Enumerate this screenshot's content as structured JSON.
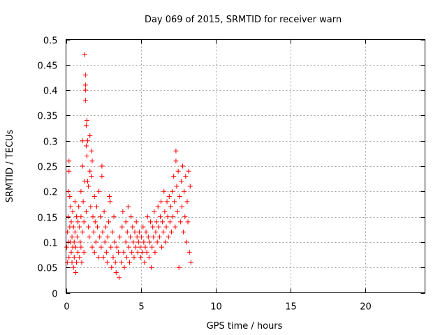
{
  "chart_data": {
    "type": "scatter",
    "title": "Day 069 of 2015, SRMTID for receiver warn",
    "xlabel": "GPS time / hours",
    "ylabel": "SRMTID / TECUs",
    "xlim": [
      0,
      24
    ],
    "ylim": [
      0,
      0.5
    ],
    "xticks": [
      0,
      5,
      10,
      15,
      20
    ],
    "xtick_labels": [
      "0",
      "5",
      "10",
      "15",
      "20"
    ],
    "yticks": [
      0,
      0.05,
      0.1,
      0.15,
      0.2,
      0.25,
      0.3,
      0.35,
      0.4,
      0.45,
      0.5
    ],
    "ytick_labels": [
      "0",
      "0.05",
      "0.1",
      "0.15",
      "0.2",
      "0.25",
      "0.3",
      "0.35",
      "0.4",
      "0.45",
      "0.5"
    ],
    "grid": true,
    "marker": "+",
    "series": [
      {
        "name": "warn",
        "color": "#ff0000",
        "points": [
          [
            0.05,
            0.09
          ],
          [
            0.1,
            0.12
          ],
          [
            0.1,
            0.06
          ],
          [
            0.15,
            0.2
          ],
          [
            0.15,
            0.15
          ],
          [
            0.15,
            0.1
          ],
          [
            0.2,
            0.26
          ],
          [
            0.2,
            0.24
          ],
          [
            0.2,
            0.07
          ],
          [
            0.25,
            0.19
          ],
          [
            0.25,
            0.13
          ],
          [
            0.3,
            0.1
          ],
          [
            0.3,
            0.17
          ],
          [
            0.35,
            0.08
          ],
          [
            0.35,
            0.14
          ],
          [
            0.4,
            0.06
          ],
          [
            0.4,
            0.11
          ],
          [
            0.45,
            0.16
          ],
          [
            0.45,
            0.09
          ],
          [
            0.5,
            0.05
          ],
          [
            0.5,
            0.13
          ],
          [
            0.55,
            0.1
          ],
          [
            0.55,
            0.07
          ],
          [
            0.6,
            0.18
          ],
          [
            0.6,
            0.12
          ],
          [
            0.65,
            0.04
          ],
          [
            0.65,
            0.09
          ],
          [
            0.7,
            0.15
          ],
          [
            0.7,
            0.06
          ],
          [
            0.75,
            0.11
          ],
          [
            0.8,
            0.14
          ],
          [
            0.8,
            0.08
          ],
          [
            0.85,
            0.17
          ],
          [
            0.9,
            0.13
          ],
          [
            0.9,
            0.07
          ],
          [
            0.95,
            0.1
          ],
          [
            1.0,
            0.2
          ],
          [
            1.0,
            0.15
          ],
          [
            1.0,
            0.09
          ],
          [
            1.05,
            0.06
          ],
          [
            1.1,
            0.25
          ],
          [
            1.1,
            0.3
          ],
          [
            1.1,
            0.12
          ],
          [
            1.15,
            0.18
          ],
          [
            1.2,
            0.08
          ],
          [
            1.2,
            0.14
          ],
          [
            1.25,
            0.22
          ],
          [
            1.25,
            0.47
          ],
          [
            1.3,
            0.43
          ],
          [
            1.3,
            0.41
          ],
          [
            1.3,
            0.38
          ],
          [
            1.3,
            0.4
          ],
          [
            1.35,
            0.33
          ],
          [
            1.35,
            0.29
          ],
          [
            1.35,
            0.16
          ],
          [
            1.4,
            0.34
          ],
          [
            1.4,
            0.27
          ],
          [
            1.45,
            0.3
          ],
          [
            1.45,
            0.22
          ],
          [
            1.5,
            0.21
          ],
          [
            1.5,
            0.13
          ],
          [
            1.55,
            0.11
          ],
          [
            1.6,
            0.31
          ],
          [
            1.6,
            0.24
          ],
          [
            1.65,
            0.17
          ],
          [
            1.7,
            0.28
          ],
          [
            1.7,
            0.23
          ],
          [
            1.75,
            0.26
          ],
          [
            1.75,
            0.09
          ],
          [
            1.8,
            0.15
          ],
          [
            1.85,
            0.12
          ],
          [
            1.9,
            0.19
          ],
          [
            1.9,
            0.08
          ],
          [
            1.95,
            0.14
          ],
          [
            2.0,
            0.1
          ],
          [
            2.05,
            0.17
          ],
          [
            2.1,
            0.13
          ],
          [
            2.15,
            0.07
          ],
          [
            2.2,
            0.2
          ],
          [
            2.25,
            0.11
          ],
          [
            2.3,
            0.15
          ],
          [
            2.35,
            0.09
          ],
          [
            2.4,
            0.25
          ],
          [
            2.4,
            0.23
          ],
          [
            2.45,
            0.12
          ],
          [
            2.5,
            0.07
          ],
          [
            2.55,
            0.16
          ],
          [
            2.6,
            0.1
          ],
          [
            2.65,
            0.13
          ],
          [
            2.7,
            0.08
          ],
          [
            2.75,
            0.06
          ],
          [
            2.8,
            0.11
          ],
          [
            2.85,
            0.14
          ],
          [
            2.9,
            0.19
          ],
          [
            2.95,
            0.18
          ],
          [
            3.0,
            0.09
          ],
          [
            3.05,
            0.05
          ],
          [
            3.1,
            0.12
          ],
          [
            3.15,
            0.07
          ],
          [
            3.2,
            0.15
          ],
          [
            3.25,
            0.1
          ],
          [
            3.3,
            0.06
          ],
          [
            3.35,
            0.04
          ],
          [
            3.4,
            0.09
          ],
          [
            3.5,
            0.08
          ],
          [
            3.55,
            0.03
          ],
          [
            3.6,
            0.11
          ],
          [
            3.7,
            0.06
          ],
          [
            3.75,
            0.13
          ],
          [
            3.8,
            0.16
          ],
          [
            3.85,
            0.08
          ],
          [
            3.9,
            0.05
          ],
          [
            4.0,
            0.1
          ],
          [
            4.0,
            0.14
          ],
          [
            4.05,
            0.07
          ],
          [
            4.1,
            0.12
          ],
          [
            4.15,
            0.17
          ],
          [
            4.2,
            0.09
          ],
          [
            4.25,
            0.06
          ],
          [
            4.3,
            0.11
          ],
          [
            4.35,
            0.15
          ],
          [
            4.4,
            0.08
          ],
          [
            4.45,
            0.13
          ],
          [
            4.5,
            0.1
          ],
          [
            4.55,
            0.07
          ],
          [
            4.6,
            0.12
          ],
          [
            4.65,
            0.09
          ],
          [
            4.7,
            0.14
          ],
          [
            4.75,
            0.11
          ],
          [
            4.8,
            0.08
          ],
          [
            4.85,
            0.1
          ],
          [
            4.9,
            0.12
          ],
          [
            4.95,
            0.09
          ],
          [
            5.0,
            0.07
          ],
          [
            5.05,
            0.11
          ],
          [
            5.1,
            0.08
          ],
          [
            5.15,
            0.13
          ],
          [
            5.2,
            0.1
          ],
          [
            5.25,
            0.06
          ],
          [
            5.3,
            0.09
          ],
          [
            5.35,
            0.12
          ],
          [
            5.4,
            0.08
          ],
          [
            5.45,
            0.15
          ],
          [
            5.5,
            0.11
          ],
          [
            5.55,
            0.07
          ],
          [
            5.6,
            0.1
          ],
          [
            5.65,
            0.14
          ],
          [
            5.7,
            0.05
          ],
          [
            5.75,
            0.09
          ],
          [
            5.8,
            0.13
          ],
          [
            5.85,
            0.11
          ],
          [
            5.9,
            0.16
          ],
          [
            5.95,
            0.08
          ],
          [
            6.0,
            0.12
          ],
          [
            6.05,
            0.14
          ],
          [
            6.1,
            0.1
          ],
          [
            6.15,
            0.17
          ],
          [
            6.2,
            0.13
          ],
          [
            6.25,
            0.11
          ],
          [
            6.3,
            0.15
          ],
          [
            6.35,
            0.18
          ],
          [
            6.4,
            0.09
          ],
          [
            6.45,
            0.14
          ],
          [
            6.5,
            0.12
          ],
          [
            6.55,
            0.2
          ],
          [
            6.6,
            0.16
          ],
          [
            6.65,
            0.1
          ],
          [
            6.7,
            0.13
          ],
          [
            6.75,
            0.18
          ],
          [
            6.8,
            0.15
          ],
          [
            6.85,
            0.11
          ],
          [
            6.9,
            0.19
          ],
          [
            6.95,
            0.14
          ],
          [
            7.0,
            0.17
          ],
          [
            7.05,
            0.12
          ],
          [
            7.1,
            0.2
          ],
          [
            7.15,
            0.15
          ],
          [
            7.2,
            0.23
          ],
          [
            7.25,
            0.18
          ],
          [
            7.3,
            0.13
          ],
          [
            7.35,
            0.28
          ],
          [
            7.35,
            0.26
          ],
          [
            7.4,
            0.21
          ],
          [
            7.45,
            0.16
          ],
          [
            7.5,
            0.24
          ],
          [
            7.55,
            0.05
          ],
          [
            7.6,
            0.19
          ],
          [
            7.65,
            0.14
          ],
          [
            7.7,
            0.22
          ],
          [
            7.75,
            0.17
          ],
          [
            7.8,
            0.25
          ],
          [
            7.85,
            0.12
          ],
          [
            7.9,
            0.2
          ],
          [
            7.95,
            0.15
          ],
          [
            8.0,
            0.23
          ],
          [
            8.05,
            0.1
          ],
          [
            8.1,
            0.18
          ],
          [
            8.15,
            0.14
          ],
          [
            8.2,
            0.24
          ],
          [
            8.25,
            0.08
          ],
          [
            8.3,
            0.21
          ],
          [
            8.35,
            0.06
          ]
        ]
      }
    ]
  }
}
